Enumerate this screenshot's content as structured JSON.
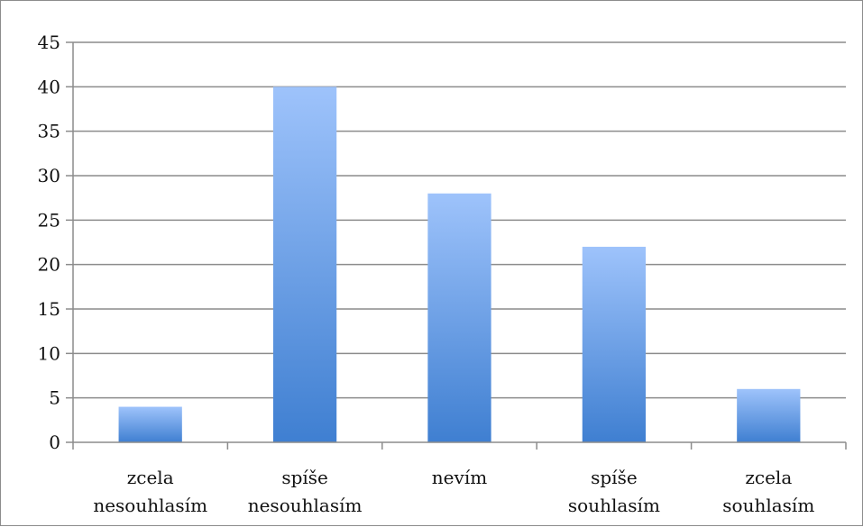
{
  "chart_data": {
    "type": "bar",
    "categories": [
      [
        "zcela",
        "nesouhlasím"
      ],
      [
        "spíše",
        "nesouhlasím"
      ],
      [
        "nevím"
      ],
      [
        "spíše",
        "souhlasím"
      ],
      [
        "zcela",
        "souhlasím"
      ]
    ],
    "values": [
      4,
      40,
      28,
      22,
      6
    ],
    "ylim": [
      0,
      45
    ],
    "yticks": [
      0,
      5,
      10,
      15,
      20,
      25,
      30,
      35,
      40,
      45
    ],
    "grid": true,
    "legend": "none",
    "colors": {
      "bar_top": "#9ec3fb",
      "bar_bottom": "#3f7fd1",
      "grid": "#8c8c8c",
      "axis": "#8c8c8c"
    }
  }
}
